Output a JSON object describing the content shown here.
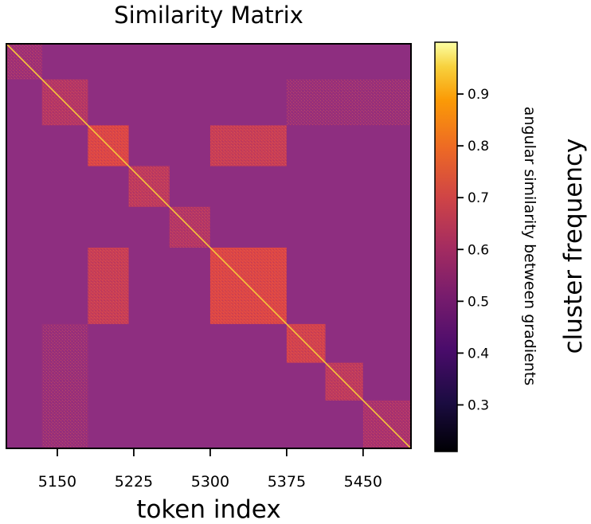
{
  "chart_data": {
    "type": "heatmap",
    "title": "Similarity Matrix",
    "xlabel": "token index",
    "ylabel": "",
    "x_ticks": [
      5150,
      5225,
      5300,
      5375,
      5450
    ],
    "x_range": [
      5100,
      5497
    ],
    "colorbar": {
      "colormap": "plasma",
      "label": "angular similarity between gradients",
      "range": [
        0.21,
        1.0
      ],
      "ticks": [
        0.3,
        0.4,
        0.5,
        0.6,
        0.7,
        0.8,
        0.9
      ]
    },
    "side_label": "cluster frequency",
    "background_value": 0.5,
    "diagonal_value": 1.0,
    "blocks": [
      {
        "x": [
          5100,
          5135
        ],
        "y": [
          5100,
          5135
        ],
        "value": 0.53
      },
      {
        "x": [
          5135,
          5180
        ],
        "y": [
          5135,
          5180
        ],
        "value": 0.56
      },
      {
        "x": [
          5180,
          5220
        ],
        "y": [
          5180,
          5220
        ],
        "value": 0.6
      },
      {
        "x": [
          5220,
          5260
        ],
        "y": [
          5220,
          5260
        ],
        "value": 0.57
      },
      {
        "x": [
          5260,
          5300
        ],
        "y": [
          5260,
          5300
        ],
        "value": 0.56
      },
      {
        "x": [
          5300,
          5375
        ],
        "y": [
          5300,
          5375
        ],
        "value": 0.6
      },
      {
        "x": [
          5375,
          5413
        ],
        "y": [
          5375,
          5413
        ],
        "value": 0.59
      },
      {
        "x": [
          5413,
          5450
        ],
        "y": [
          5413,
          5450
        ],
        "value": 0.57
      },
      {
        "x": [
          5450,
          5497
        ],
        "y": [
          5450,
          5497
        ],
        "value": 0.55
      },
      {
        "x": [
          5300,
          5375
        ],
        "y": [
          5180,
          5220
        ],
        "value": 0.58
      },
      {
        "x": [
          5180,
          5220
        ],
        "y": [
          5300,
          5375
        ],
        "value": 0.58
      },
      {
        "x": [
          5375,
          5497
        ],
        "y": [
          5135,
          5180
        ],
        "value": 0.52
      },
      {
        "x": [
          5135,
          5180
        ],
        "y": [
          5375,
          5497
        ],
        "value": 0.52
      }
    ]
  }
}
